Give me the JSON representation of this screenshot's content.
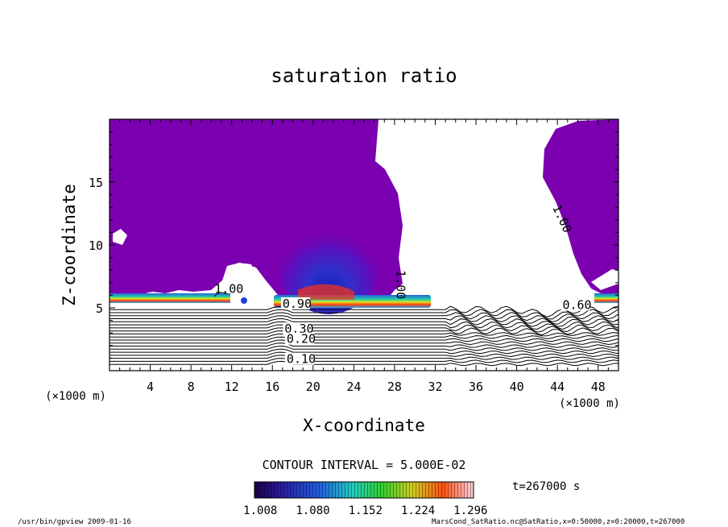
{
  "chart_data": {
    "type": "contour",
    "title": "saturation ratio",
    "xlabel": "X-coordinate",
    "ylabel": "Z-coordinate",
    "x_unit": "(×1000 m)",
    "z_unit": "(×1000 m)",
    "xlim": [
      0,
      50
    ],
    "ylim": [
      0,
      20
    ],
    "x_ticks": [
      4,
      8,
      12,
      16,
      20,
      24,
      28,
      32,
      36,
      40,
      44,
      48
    ],
    "y_ticks": [
      5,
      10,
      15
    ],
    "contour_labels": [
      {
        "text": "1.00",
        "x": 10.3,
        "z": 6.2
      },
      {
        "text": "1.00",
        "x": 28.2,
        "z": 8.0
      },
      {
        "text": "1.00",
        "x": 43.5,
        "z": 13.0
      },
      {
        "text": "0.90",
        "x": 17.0,
        "z": 5.0
      },
      {
        "text": "0.60",
        "x": 44.5,
        "z": 4.9
      },
      {
        "text": "0.30",
        "x": 17.2,
        "z": 3.0
      },
      {
        "text": "0.20",
        "x": 17.4,
        "z": 2.2
      },
      {
        "text": "0.10",
        "x": 17.4,
        "z": 0.6
      }
    ],
    "contour_interval_text": "CONTOUR INTERVAL = 5.000E-02",
    "colorbar": {
      "ticks": [
        "1.008",
        "1.080",
        "1.152",
        "1.224",
        "1.296"
      ],
      "range": [
        1.0,
        1.3
      ]
    },
    "time_label": "t=267000 s",
    "footer_left": "/usr/bin/gpview   2009-01-16",
    "footer_right": "MarsCond_SatRatio.nc@SatRatio,x=0:50000,z=0:20000,t=267000",
    "colors": {
      "saturated_fill": "#7a00b0",
      "axis": "#000000"
    }
  }
}
